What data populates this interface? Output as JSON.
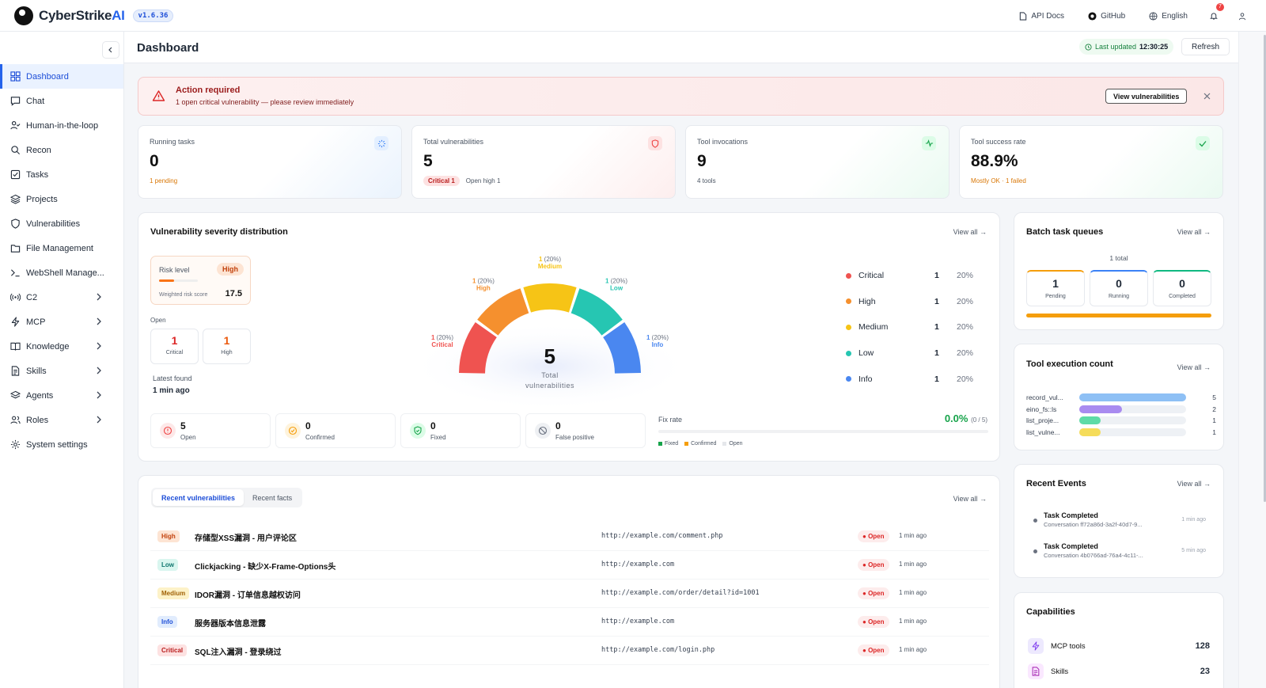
{
  "app": {
    "brand_main": "CyberStrike",
    "brand_accent": "AI",
    "version": "v1.6.36"
  },
  "topbar": {
    "api_docs": "API Docs",
    "github": "GitHub",
    "language": "English",
    "notifications": "7"
  },
  "sidebar": {
    "items": [
      {
        "label": "Dashboard",
        "icon": "dashboard-icon",
        "active": true
      },
      {
        "label": "Chat",
        "icon": "chat-icon"
      },
      {
        "label": "Human-in-the-loop",
        "icon": "user-check-icon"
      },
      {
        "label": "Recon",
        "icon": "search-icon"
      },
      {
        "label": "Tasks",
        "icon": "checkbox-icon"
      },
      {
        "label": "Projects",
        "icon": "layers-icon"
      },
      {
        "label": "Vulnerabilities",
        "icon": "shield-icon"
      },
      {
        "label": "File Management",
        "icon": "folder-icon"
      },
      {
        "label": "WebShell Manage...",
        "icon": "terminal-icon"
      },
      {
        "label": "C2",
        "icon": "broadcast-icon",
        "expandable": true
      },
      {
        "label": "MCP",
        "icon": "bolt-icon",
        "expandable": true
      },
      {
        "label": "Knowledge",
        "icon": "book-icon",
        "expandable": true
      },
      {
        "label": "Skills",
        "icon": "document-icon",
        "expandable": true
      },
      {
        "label": "Agents",
        "icon": "stack-icon",
        "expandable": true
      },
      {
        "label": "Roles",
        "icon": "users-icon",
        "expandable": true
      },
      {
        "label": "System settings",
        "icon": "gear-icon"
      }
    ]
  },
  "header": {
    "title": "Dashboard",
    "last_updated_label": "Last updated",
    "last_updated_time": "12:30:25",
    "refresh": "Refresh"
  },
  "alert": {
    "title": "Action required",
    "message": "1 open critical vulnerability — please review immediately",
    "button": "View vulnerabilities"
  },
  "stats": {
    "running": {
      "label": "Running tasks",
      "value": "0",
      "sub": "1 pending"
    },
    "vulns": {
      "label": "Total vulnerabilities",
      "value": "5",
      "critical_badge": "Critical 1",
      "open_high": "Open high 1"
    },
    "tools": {
      "label": "Tool invocations",
      "value": "9",
      "sub": "4 tools"
    },
    "success": {
      "label": "Tool success rate",
      "value": "88.9%",
      "sub": "Mostly OK · 1 failed"
    }
  },
  "severity": {
    "title": "Vulnerability severity distribution",
    "view_all": "View all →",
    "risk_level_label": "Risk level",
    "risk_level": "High",
    "risk_fraction": 0.38,
    "weighted_label": "Weighted risk score",
    "weighted_value": "17.5",
    "open_label": "Open",
    "open_critical": {
      "n": "1",
      "label": "Critical"
    },
    "open_high": {
      "n": "1",
      "label": "High"
    },
    "latest_label": "Latest found",
    "latest_value": "1 min ago",
    "gauge_total": "5",
    "gauge_label_1": "Total",
    "gauge_label_2": "vulnerabilities",
    "gauge_labels": [
      {
        "count": "1",
        "pct": "(20%)",
        "name": "Critical"
      },
      {
        "count": "1",
        "pct": "(20%)",
        "name": "High"
      },
      {
        "count": "1",
        "pct": "(20%)",
        "name": "Medium"
      },
      {
        "count": "1",
        "pct": "(20%)",
        "name": "Low"
      },
      {
        "count": "1",
        "pct": "(20%)",
        "name": "Info"
      }
    ],
    "legend": [
      {
        "name": "Critical",
        "count": "1",
        "pct": "20%",
        "color": "#ef5350"
      },
      {
        "name": "High",
        "count": "1",
        "pct": "20%",
        "color": "#f5902e"
      },
      {
        "name": "Medium",
        "count": "1",
        "pct": "20%",
        "color": "#f6c416"
      },
      {
        "name": "Low",
        "count": "1",
        "pct": "20%",
        "color": "#26c6b2"
      },
      {
        "name": "Info",
        "count": "1",
        "pct": "20%",
        "color": "#4a87f0"
      }
    ],
    "status": [
      {
        "n": "5",
        "label": "Open",
        "icon": "alert-circle-icon"
      },
      {
        "n": "0",
        "label": "Confirmed",
        "icon": "check-circle-icon"
      },
      {
        "n": "0",
        "label": "Fixed",
        "icon": "shield-check-icon"
      },
      {
        "n": "0",
        "label": "False positive",
        "icon": "ban-icon"
      }
    ],
    "fix_rate_label": "Fix rate",
    "fix_rate_value": "0.0%",
    "fix_rate_fraction": "(0 / 5)",
    "fix_legend": [
      "Fixed",
      "Confirmed",
      "Open"
    ]
  },
  "recent": {
    "tabs": [
      "Recent vulnerabilities",
      "Recent facts"
    ],
    "view_all": "View all →",
    "rows": [
      {
        "sev": "High",
        "title": "存储型XSS漏洞 - 用户评论区",
        "url": "http://example.com/comment.php",
        "status": "Open",
        "time": "1 min ago"
      },
      {
        "sev": "Low",
        "title": "Clickjacking - 缺少X-Frame-Options头",
        "url": "http://example.com",
        "status": "Open",
        "time": "1 min ago"
      },
      {
        "sev": "Medium",
        "title": "IDOR漏洞 - 订单信息越权访问",
        "url": "http://example.com/order/detail?id=1001",
        "status": "Open",
        "time": "1 min ago"
      },
      {
        "sev": "Info",
        "title": "服务器版本信息泄露",
        "url": "http://example.com",
        "status": "Open",
        "time": "1 min ago"
      },
      {
        "sev": "Critical",
        "title": "SQL注入漏洞 - 登录绕过",
        "url": "http://example.com/login.php",
        "status": "Open",
        "time": "1 min ago"
      }
    ]
  },
  "batch": {
    "title": "Batch task queues",
    "view_all": "View all →",
    "total": "1 total",
    "pending": {
      "n": "1",
      "label": "Pending"
    },
    "running": {
      "n": "0",
      "label": "Running"
    },
    "completed": {
      "n": "0",
      "label": "Completed"
    },
    "pending_fraction": 1.0
  },
  "toolexec": {
    "title": "Tool execution count",
    "view_all": "View all →",
    "rows": [
      {
        "name": "record_vul...",
        "value": 5,
        "color": "#8ec0f5"
      },
      {
        "name": "eino_fs::ls",
        "value": 2,
        "color": "#a98bf0"
      },
      {
        "name": "list_proje...",
        "value": 1,
        "color": "#5edba7"
      },
      {
        "name": "list_vulne...",
        "value": 1,
        "color": "#f5dc5a"
      }
    ]
  },
  "events": {
    "title": "Recent Events",
    "view_all": "View all →",
    "items": [
      {
        "title": "Task Completed",
        "sub": "Conversation ff72a86d-3a2f-40d7-9...",
        "time": "1 min ago"
      },
      {
        "title": "Task Completed",
        "sub": "Conversation 4b0766ad-76a4-4c11-...",
        "time": "5 min ago"
      }
    ]
  },
  "capabilities": {
    "title": "Capabilities",
    "items": [
      {
        "label": "MCP tools",
        "value": "128",
        "icon": "bolt-icon"
      },
      {
        "label": "Skills",
        "value": "23",
        "icon": "document-icon"
      }
    ]
  }
}
